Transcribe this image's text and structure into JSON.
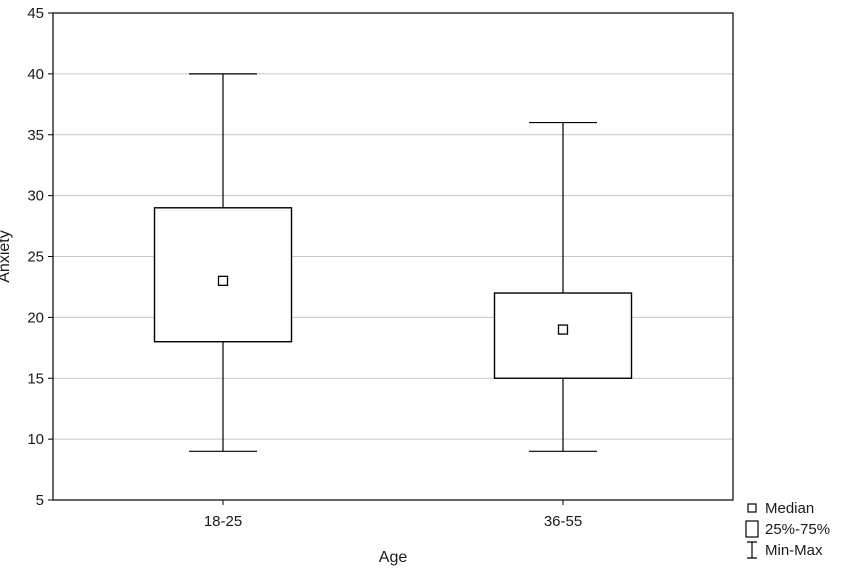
{
  "chart_data": {
    "type": "box",
    "title": "",
    "xlabel": "Age",
    "ylabel": "Anxiety",
    "ylim": [
      5,
      45
    ],
    "yticks": [
      5,
      10,
      15,
      20,
      25,
      30,
      35,
      40,
      45
    ],
    "grid": "horizontal",
    "categories": [
      "18-25",
      "36-55"
    ],
    "boxes": [
      {
        "category": "18-25",
        "min": 9,
        "q1": 18,
        "median": 23,
        "q3": 29,
        "max": 40
      },
      {
        "category": "36-55",
        "min": 9,
        "q1": 15,
        "median": 19,
        "q3": 22,
        "max": 36
      }
    ],
    "legend": {
      "position": "bottom-right",
      "entries": [
        "Median",
        "25%-75%",
        "Min-Max"
      ]
    }
  }
}
